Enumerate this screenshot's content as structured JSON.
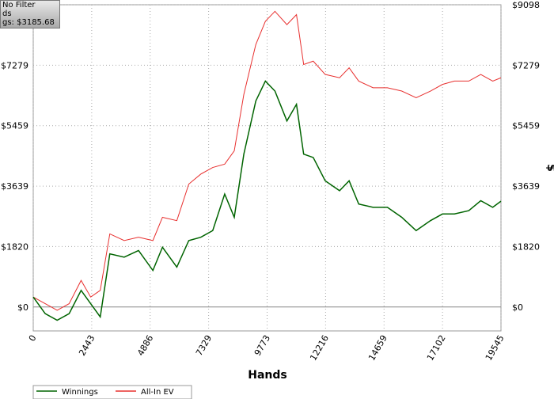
{
  "chart_data": {
    "type": "line",
    "info": [
      "No Filter",
      "ds",
      "gs: $3185.68"
    ],
    "x_label": "Hands",
    "y_label": "$",
    "x": [
      0,
      500,
      1000,
      1500,
      2000,
      2400,
      2800,
      3200,
      3800,
      4400,
      5000,
      5400,
      6000,
      6500,
      7000,
      7500,
      8000,
      8400,
      8800,
      9300,
      9700,
      10100,
      10600,
      11000,
      11300,
      11700,
      12200,
      12800,
      13200,
      13600,
      14200,
      14800,
      15400,
      16000,
      16600,
      17100,
      17600,
      18200,
      18700,
      19200,
      19545
    ],
    "series": [
      {
        "name": "Winnings",
        "color": "#006400",
        "values": [
          300,
          -200,
          -400,
          -200,
          500,
          100,
          -300,
          1600,
          1500,
          1700,
          1100,
          1800,
          1200,
          2000,
          2100,
          2300,
          3400,
          2700,
          4600,
          6200,
          6800,
          6500,
          5600,
          6100,
          4600,
          4500,
          3800,
          3500,
          3800,
          3100,
          3000,
          3000,
          2700,
          2300,
          2600,
          2800,
          2800,
          2900,
          3200,
          3000,
          3186
        ]
      },
      {
        "name": "All-In EV",
        "color": "#e8302f",
        "values": [
          300,
          100,
          -100,
          100,
          800,
          300,
          500,
          2200,
          2000,
          2100,
          2000,
          2700,
          2600,
          3700,
          4000,
          4200,
          4300,
          4700,
          6400,
          7900,
          8600,
          8900,
          8500,
          8800,
          7300,
          7400,
          7000,
          6900,
          7200,
          6800,
          6600,
          6600,
          6500,
          6300,
          6500,
          6700,
          6800,
          6800,
          7000,
          6800,
          6900
        ]
      }
    ],
    "xlim": [
      0,
      19545
    ],
    "xticks": [
      0,
      2443,
      4886,
      7329,
      9773,
      12216,
      14659,
      17102,
      19545
    ],
    "ylim": [
      -720,
      9098
    ],
    "yticks": [
      {
        "value": 0,
        "label": "$0"
      },
      {
        "value": 1820,
        "label": "$1820"
      },
      {
        "value": 3639,
        "label": "$3639"
      },
      {
        "value": 5459,
        "label": "$5459"
      },
      {
        "value": 7279,
        "label": "$7279"
      },
      {
        "value": 9098,
        "label": "$9098"
      }
    ],
    "grid": true
  }
}
